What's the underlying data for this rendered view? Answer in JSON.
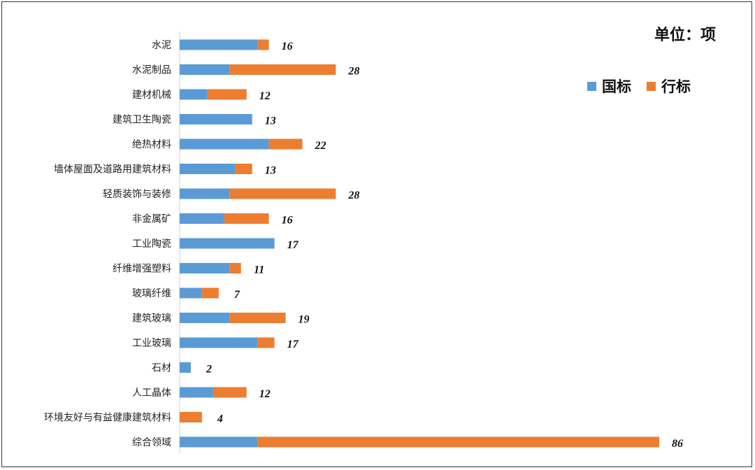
{
  "chart_data": {
    "type": "bar",
    "orientation": "horizontal",
    "stacked": true,
    "unit_label": "单位：项",
    "categories": [
      "水泥",
      "水泥制品",
      "建材机械",
      "建筑卫生陶瓷",
      "绝热材料",
      "墙体屋面及道路用建筑材料",
      "轻质装饰与装修",
      "非金属矿",
      "工业陶瓷",
      "纤维增强塑料",
      "玻璃纤维",
      "建筑玻璃",
      "工业玻璃",
      "石材",
      "人工晶体",
      "环境友好与有益健康建筑材料",
      "综合领域"
    ],
    "series": [
      {
        "name": "国标",
        "color": "#5b9bd5",
        "values": [
          14,
          9,
          5,
          13,
          16,
          10,
          9,
          8,
          17,
          9,
          4,
          9,
          14,
          2,
          6,
          0,
          14
        ]
      },
      {
        "name": "行标",
        "color": "#ed7d31",
        "values": [
          2,
          19,
          7,
          0,
          6,
          3,
          19,
          8,
          0,
          2,
          3,
          10,
          3,
          0,
          6,
          4,
          72
        ]
      }
    ],
    "totals": [
      16,
      28,
      12,
      13,
      22,
      13,
      28,
      16,
      17,
      11,
      7,
      19,
      17,
      2,
      12,
      4,
      86
    ],
    "xlim": [
      0,
      86
    ],
    "grid": false,
    "legend_position": "top-right"
  }
}
